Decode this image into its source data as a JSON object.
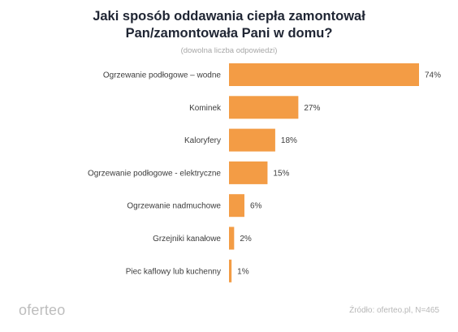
{
  "title_lines": [
    "Jaki sposób oddawania ciepła zamontował",
    "Pan/zamontowała Pani w domu?"
  ],
  "subtitle": "(dowolna liczba odpowiedzi)",
  "logo": "oferteo",
  "source": "Źródło: oferteo.pl, N=465",
  "colors": {
    "bar": "#F39C45",
    "label": "#3d3d3d"
  },
  "chart_data": {
    "type": "bar",
    "orientation": "horizontal",
    "title": "Jaki sposób oddawania ciepła zamontował Pan/zamontowała Pani w domu?",
    "subtitle": "(dowolna liczba odpowiedzi)",
    "categories": [
      "Ogrzewanie podłogowe – wodne",
      "Kominek",
      "Kaloryfery",
      "Ogrzewanie podłogowe - elektryczne",
      "Ogrzewanie nadmuchowe",
      "Grzejniki kanałowe",
      "Piec kaflowy lub kuchenny"
    ],
    "values": [
      74,
      27,
      18,
      15,
      6,
      2,
      1
    ],
    "value_labels": [
      "74%",
      "27%",
      "18%",
      "15%",
      "6%",
      "2%",
      "1%"
    ],
    "unit": "%",
    "xlim": [
      0,
      74
    ],
    "grid": false,
    "legend": "none"
  }
}
